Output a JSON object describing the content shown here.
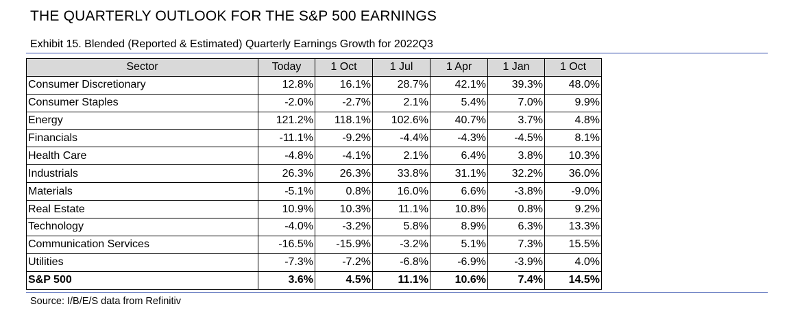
{
  "title": "THE QUARTERLY OUTLOOK FOR THE S&P 500 EARNINGS",
  "subtitle": "Exhibit 15. Blended (Reported & Estimated) Quarterly Earnings Growth for 2022Q3",
  "table": {
    "headers": [
      "Sector",
      "Today",
      "1 Oct",
      "1 Jul",
      "1 Apr",
      "1 Jan",
      "1 Oct"
    ],
    "rows": [
      [
        "Consumer Discretionary",
        "12.8%",
        "16.1%",
        "28.7%",
        "42.1%",
        "39.3%",
        "48.0%"
      ],
      [
        "Consumer Staples",
        "-2.0%",
        "-2.7%",
        "2.1%",
        "5.4%",
        "7.0%",
        "9.9%"
      ],
      [
        "Energy",
        "121.2%",
        "118.1%",
        "102.6%",
        "40.7%",
        "3.7%",
        "4.8%"
      ],
      [
        "Financials",
        "-11.1%",
        "-9.2%",
        "-4.4%",
        "-4.3%",
        "-4.5%",
        "8.1%"
      ],
      [
        "Health Care",
        "-4.8%",
        "-4.1%",
        "2.1%",
        "6.4%",
        "3.8%",
        "10.3%"
      ],
      [
        "Industrials",
        "26.3%",
        "26.3%",
        "33.8%",
        "31.1%",
        "32.2%",
        "36.0%"
      ],
      [
        "Materials",
        "-5.1%",
        "0.8%",
        "16.0%",
        "6.6%",
        "-3.8%",
        "-9.0%"
      ],
      [
        "Real Estate",
        "10.9%",
        "10.3%",
        "11.1%",
        "10.8%",
        "0.8%",
        "9.2%"
      ],
      [
        "Technology",
        "-4.0%",
        "-3.2%",
        "5.8%",
        "8.9%",
        "6.3%",
        "13.3%"
      ],
      [
        "Communication Services",
        "-16.5%",
        "-15.9%",
        "-3.2%",
        "5.1%",
        "7.3%",
        "15.5%"
      ],
      [
        "Utilities",
        "-7.3%",
        "-7.2%",
        "-6.8%",
        "-6.9%",
        "-3.9%",
        "4.0%"
      ]
    ],
    "total": [
      "S&P 500",
      "3.6%",
      "4.5%",
      "11.1%",
      "10.6%",
      "7.4%",
      "14.5%"
    ]
  },
  "source": "Source: I/B/E/S data from Refinitiv"
}
